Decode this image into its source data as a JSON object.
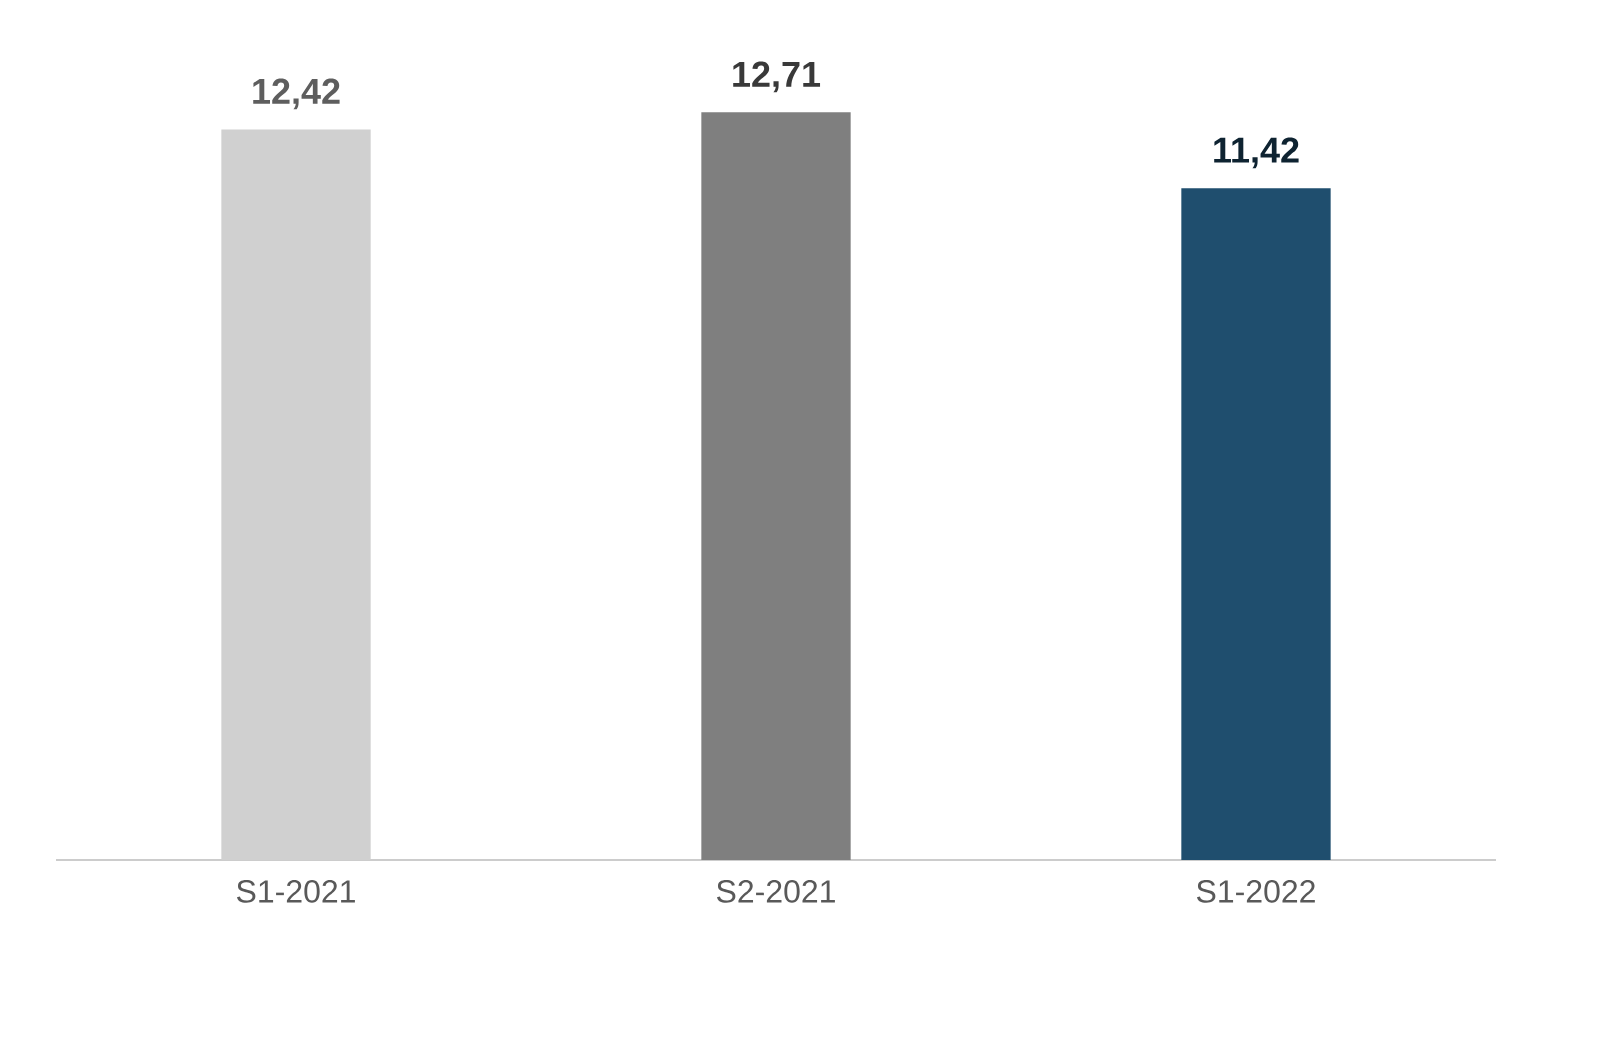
{
  "chart_data": {
    "type": "bar",
    "categories": [
      "S1-2021",
      "S2-2021",
      "S1-2022"
    ],
    "values": [
      12.42,
      12.71,
      11.42
    ],
    "value_labels": [
      "12,42",
      "12,71",
      "11,42"
    ],
    "colors": [
      "#d0d0d0",
      "#7f7f7f",
      "#1f4e6e"
    ]
  }
}
